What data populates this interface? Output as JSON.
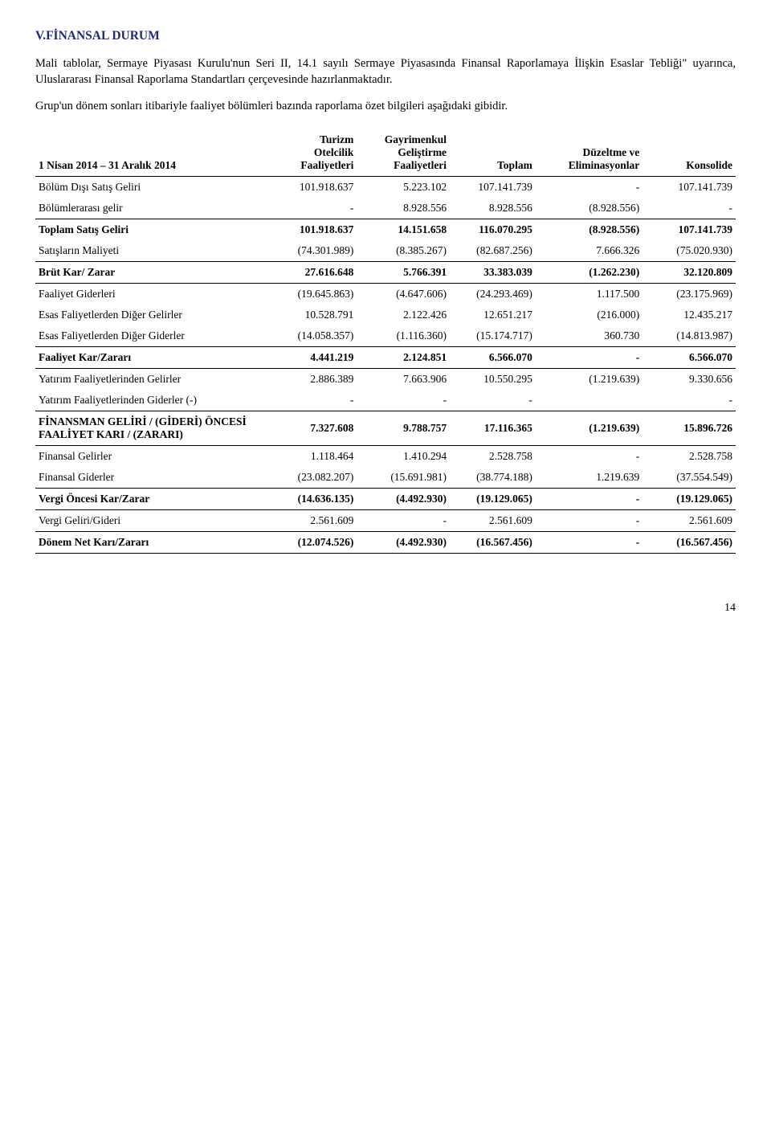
{
  "heading": "V.FİNANSAL DURUM",
  "paragraphs": [
    "Mali tablolar, Sermaye Piyasası Kurulu'nun Seri II, 14.1 sayılı Sermaye Piyasasında Finansal Raporlamaya İlişkin Esaslar Tebliği\" uyarınca, Uluslararası Finansal Raporlama Standartları çerçevesinde hazırlanmaktadır.",
    "Grup'un dönem sonları itibariyle faaliyet bölümleri bazında raporlama özet bilgileri aşağıdaki gibidir."
  ],
  "columns": [
    "1 Nisan 2014 – 31 Aralık 2014",
    "Turizm\nOtelcilik\nFaaliyetleri",
    "Gayrimenkul\nGeliştirme\nFaaliyetleri",
    "Toplam",
    "Düzeltme ve\nEliminasyonlar",
    "Konsolide"
  ],
  "rows": [
    {
      "label": "Bölüm Dışı  Satış Geliri",
      "c": [
        "101.918.637",
        "5.223.102",
        "107.141.739",
        "-",
        "107.141.739"
      ],
      "bold": false,
      "underline": false
    },
    {
      "label": "Bölümlerarası gelir",
      "c": [
        "-",
        "8.928.556",
        "8.928.556",
        "(8.928.556)",
        "-"
      ],
      "bold": false,
      "underline": true
    },
    {
      "label": "Toplam Satış Geliri",
      "c": [
        "101.918.637",
        "14.151.658",
        "116.070.295",
        "(8.928.556)",
        "107.141.739"
      ],
      "bold": true,
      "underline": false
    },
    {
      "label": "Satışların Maliyeti",
      "c": [
        "(74.301.989)",
        "(8.385.267)",
        "(82.687.256)",
        "7.666.326",
        "(75.020.930)"
      ],
      "bold": false,
      "underline": true
    },
    {
      "label": "Brüt Kar/ Zarar",
      "c": [
        "27.616.648",
        "5.766.391",
        "33.383.039",
        "(1.262.230)",
        "32.120.809"
      ],
      "bold": true,
      "underline": true
    },
    {
      "label": "Faaliyet Giderleri",
      "c": [
        "(19.645.863)",
        "(4.647.606)",
        "(24.293.469)",
        "1.117.500",
        "(23.175.969)"
      ],
      "bold": false,
      "underline": false
    },
    {
      "label": "Esas Faliyetlerden Diğer Gelirler",
      "c": [
        "10.528.791",
        "2.122.426",
        "12.651.217",
        "(216.000)",
        "12.435.217"
      ],
      "bold": false,
      "underline": false
    },
    {
      "label": "Esas Faliyetlerden Diğer Giderler",
      "c": [
        "(14.058.357)",
        "(1.116.360)",
        "(15.174.717)",
        "360.730",
        "(14.813.987)"
      ],
      "bold": false,
      "underline": true
    },
    {
      "label": "Faaliyet Kar/Zararı",
      "c": [
        "4.441.219",
        "2.124.851",
        "6.566.070",
        "-",
        "6.566.070"
      ],
      "bold": true,
      "underline": true
    },
    {
      "label": "Yatırım Faaliyetlerinden Gelirler",
      "c": [
        "2.886.389",
        "7.663.906",
        "10.550.295",
        "(1.219.639)",
        "9.330.656"
      ],
      "bold": false,
      "underline": false
    },
    {
      "label": "Yatırım Faaliyetlerinden Giderler (-)",
      "c": [
        "-",
        "-",
        "-",
        "",
        "-"
      ],
      "bold": false,
      "underline": true
    },
    {
      "label": "FİNANSMAN GELİRİ / (GİDERİ) ÖNCESİ FAALİYET KARI / (ZARARI)",
      "c": [
        "7.327.608",
        "9.788.757",
        "17.116.365",
        "(1.219.639)",
        "15.896.726"
      ],
      "bold": true,
      "underline": true
    },
    {
      "label": "Finansal Gelirler",
      "c": [
        "1.118.464",
        "1.410.294",
        "2.528.758",
        "-",
        "2.528.758"
      ],
      "bold": false,
      "underline": false
    },
    {
      "label": "Finansal Giderler",
      "c": [
        "(23.082.207)",
        "(15.691.981)",
        "(38.774.188)",
        "1.219.639",
        "(37.554.549)"
      ],
      "bold": false,
      "underline": true
    },
    {
      "label": "Vergi Öncesi Kar/Zarar",
      "c": [
        "(14.636.135)",
        "(4.492.930)",
        "(19.129.065)",
        "-",
        "(19.129.065)"
      ],
      "bold": true,
      "underline": true
    },
    {
      "label": "Vergi Geliri/Gideri",
      "c": [
        "2.561.609",
        "-",
        "2.561.609",
        "-",
        "2.561.609"
      ],
      "bold": false,
      "underline": true
    },
    {
      "label": "Dönem Net Karı/Zararı",
      "c": [
        "(12.074.526)",
        "(4.492.930)",
        "(16.567.456)",
        "-",
        "(16.567.456)"
      ],
      "bold": true,
      "underline": true
    }
  ],
  "pageNumber": "14"
}
